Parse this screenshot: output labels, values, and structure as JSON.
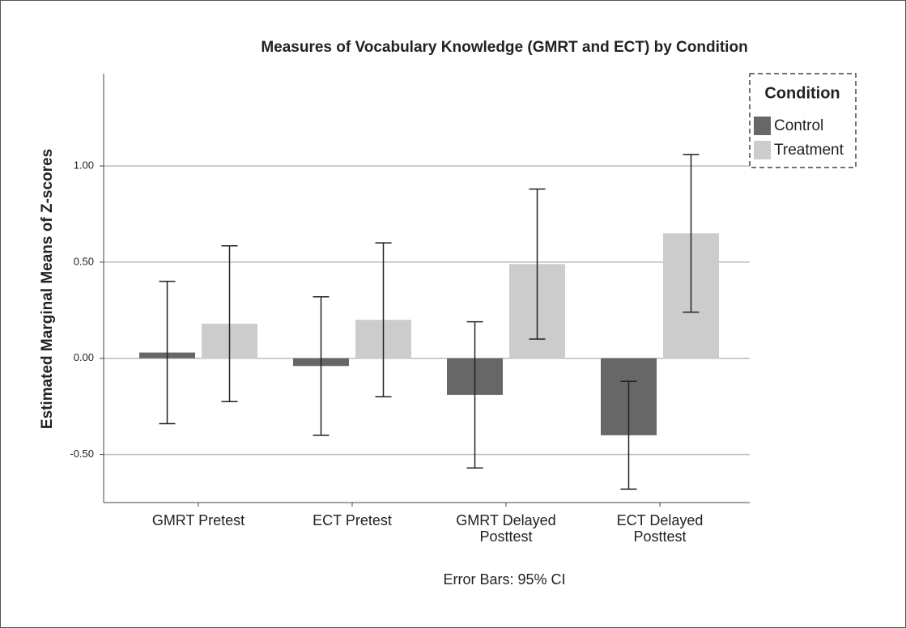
{
  "chart_data": {
    "type": "bar",
    "title": "Measures of Vocabulary Knowledge (GMRT and ECT) by Condition",
    "ylabel": "Estimated Marginal Means of Z-scores",
    "footnote": "Error Bars: 95% CI",
    "categories": [
      "GMRT Pretest",
      "ECT Pretest",
      "GMRT Delayed Posttest",
      "ECT Delayed Posttest"
    ],
    "series": [
      {
        "name": "Control",
        "color": "#676767",
        "values": [
          0.03,
          -0.04,
          -0.19,
          -0.4
        ],
        "errors": [
          0.37,
          0.36,
          0.38,
          0.28
        ]
      },
      {
        "name": "Treatment",
        "color": "#cccccc",
        "values": [
          0.18,
          0.2,
          0.49,
          0.65
        ],
        "errors": [
          0.405,
          0.4,
          0.39,
          0.41
        ]
      }
    ],
    "legend_title": "Condition",
    "legend": "upper right",
    "ylim": [
      -0.75,
      1.48
    ],
    "yticks": [
      {
        "value": -0.5,
        "label": "-0.50"
      },
      {
        "value": 0,
        "label": "0.00"
      },
      {
        "value": 0.5,
        "label": "0.50"
      },
      {
        "value": 1,
        "label": "1.00"
      }
    ],
    "grid": true
  }
}
